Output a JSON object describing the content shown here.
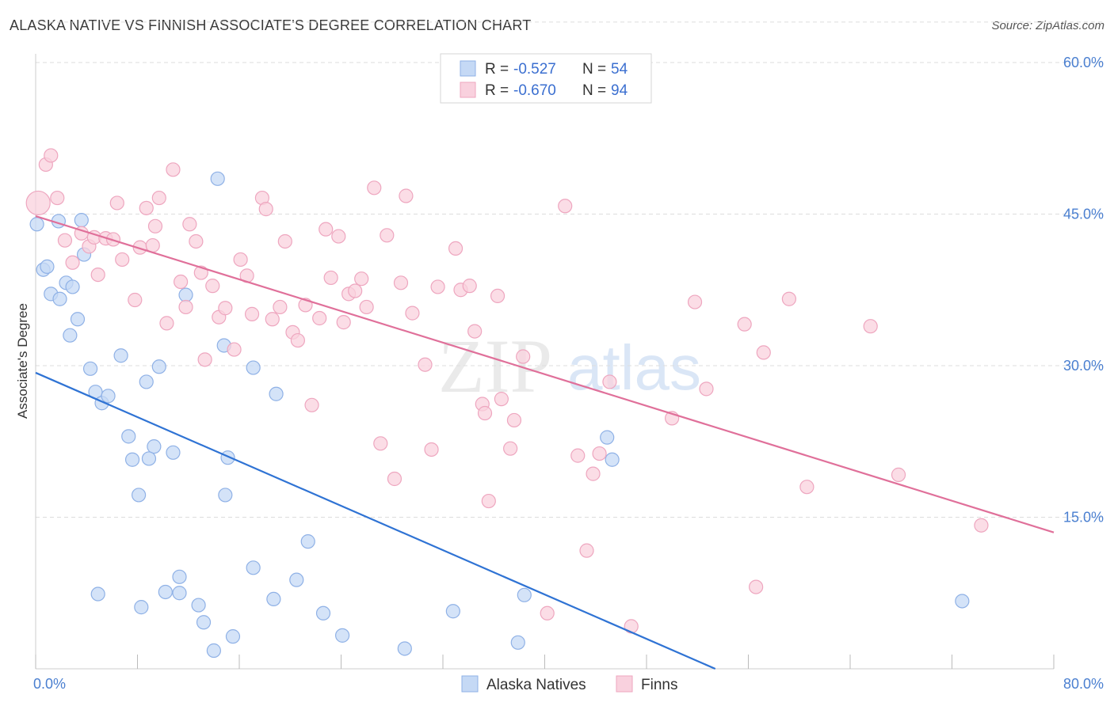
{
  "title": "ALASKA NATIVE VS FINNISH ASSOCIATE'S DEGREE CORRELATION CHART",
  "source": "Source: ZipAtlas.com",
  "watermark": {
    "zip": "ZIP",
    "atlas": "atlas"
  },
  "colors": {
    "blue_fill": "#c5d9f5",
    "blue_stroke": "#8fb1e6",
    "blue_line": "#2f73d4",
    "pink_fill": "#f9d1de",
    "pink_stroke": "#eea6bf",
    "pink_line": "#e0709a",
    "axis_text": "#4a7fd0",
    "grid": "#dddddd"
  },
  "legend_top": {
    "rows": [
      {
        "r_label": "R =",
        "r_value": "-0.527",
        "n_label": "N =",
        "n_value": "54"
      },
      {
        "r_label": "R =",
        "r_value": "-0.670",
        "n_label": "N =",
        "n_value": "94"
      }
    ]
  },
  "legend_bottom": {
    "series": [
      "Alaska Natives",
      "Finns"
    ]
  },
  "chart_data": {
    "type": "scatter",
    "title": "ALASKA NATIVE VS FINNISH ASSOCIATE'S DEGREE CORRELATION CHART",
    "xlabel": "",
    "ylabel": "Associate's Degree",
    "xlim": [
      0,
      80
    ],
    "ylim": [
      0,
      64
    ],
    "x_tick_labels": [
      "0.0%",
      "80.0%"
    ],
    "y_ticks": [
      15,
      30,
      45,
      60
    ],
    "y_tick_labels": [
      "15.0%",
      "30.0%",
      "45.0%",
      "60.0%"
    ],
    "grid": "horizontal dashed",
    "legend_position": "top-center",
    "series": [
      {
        "name": "Alaska Natives",
        "r": -0.527,
        "n": 54,
        "trend": {
          "x": [
            0,
            53.4
          ],
          "y": [
            29.3,
            0
          ]
        },
        "points": [
          [
            0.1,
            44.0
          ],
          [
            0.6,
            39.5
          ],
          [
            0.9,
            39.8
          ],
          [
            1.2,
            37.1
          ],
          [
            1.9,
            36.6
          ],
          [
            1.8,
            44.3
          ],
          [
            2.4,
            38.2
          ],
          [
            2.9,
            37.8
          ],
          [
            2.7,
            33.0
          ],
          [
            3.3,
            34.6
          ],
          [
            3.6,
            44.4
          ],
          [
            3.8,
            41.0
          ],
          [
            4.3,
            29.7
          ],
          [
            4.7,
            27.4
          ],
          [
            5.2,
            26.3
          ],
          [
            5.7,
            27.0
          ],
          [
            6.7,
            31.0
          ],
          [
            7.3,
            23.0
          ],
          [
            7.6,
            20.7
          ],
          [
            8.1,
            17.2
          ],
          [
            8.7,
            28.4
          ],
          [
            9.3,
            22.0
          ],
          [
            8.9,
            20.8
          ],
          [
            9.7,
            29.9
          ],
          [
            10.8,
            21.4
          ],
          [
            11.3,
            9.1
          ],
          [
            11.3,
            7.5
          ],
          [
            11.8,
            37.0
          ],
          [
            14.3,
            48.5
          ],
          [
            14.8,
            32.0
          ],
          [
            14.9,
            17.2
          ],
          [
            15.1,
            20.9
          ],
          [
            17.1,
            29.8
          ],
          [
            17.1,
            10.0
          ],
          [
            18.9,
            27.2
          ],
          [
            18.7,
            6.9
          ],
          [
            20.5,
            8.8
          ],
          [
            21.4,
            12.6
          ],
          [
            22.6,
            5.5
          ],
          [
            24.1,
            3.3
          ],
          [
            29.0,
            2.0
          ],
          [
            32.8,
            5.7
          ],
          [
            37.9,
            2.6
          ],
          [
            38.4,
            7.3
          ],
          [
            44.9,
            22.9
          ],
          [
            45.3,
            20.7
          ],
          [
            72.8,
            6.7
          ],
          [
            4.9,
            7.4
          ],
          [
            8.3,
            6.1
          ],
          [
            10.2,
            7.6
          ],
          [
            12.8,
            6.3
          ],
          [
            13.2,
            4.6
          ],
          [
            14.0,
            1.8
          ],
          [
            15.5,
            3.2
          ]
        ]
      },
      {
        "name": "Finns",
        "r": -0.67,
        "n": 94,
        "trend": {
          "x": [
            0,
            80
          ],
          "y": [
            44.8,
            13.5
          ]
        },
        "points": [
          [
            0.2,
            46.1
          ],
          [
            0.8,
            49.9
          ],
          [
            1.2,
            50.8
          ],
          [
            1.7,
            46.6
          ],
          [
            2.3,
            42.4
          ],
          [
            2.9,
            40.2
          ],
          [
            3.6,
            43.1
          ],
          [
            4.2,
            41.8
          ],
          [
            4.6,
            42.7
          ],
          [
            4.9,
            39.0
          ],
          [
            5.5,
            42.6
          ],
          [
            6.1,
            42.5
          ],
          [
            6.4,
            46.1
          ],
          [
            6.8,
            40.5
          ],
          [
            7.8,
            36.5
          ],
          [
            8.2,
            41.7
          ],
          [
            8.7,
            45.6
          ],
          [
            9.2,
            41.9
          ],
          [
            9.4,
            43.8
          ],
          [
            9.7,
            46.6
          ],
          [
            10.3,
            34.2
          ],
          [
            10.8,
            49.4
          ],
          [
            11.4,
            38.3
          ],
          [
            11.8,
            35.8
          ],
          [
            12.1,
            44.0
          ],
          [
            12.6,
            42.3
          ],
          [
            13.0,
            39.2
          ],
          [
            13.3,
            30.6
          ],
          [
            13.9,
            37.9
          ],
          [
            14.4,
            34.8
          ],
          [
            14.9,
            35.7
          ],
          [
            15.6,
            31.6
          ],
          [
            16.1,
            40.5
          ],
          [
            16.6,
            38.9
          ],
          [
            17.0,
            35.1
          ],
          [
            17.8,
            46.6
          ],
          [
            18.1,
            45.5
          ],
          [
            18.6,
            34.6
          ],
          [
            19.2,
            35.8
          ],
          [
            19.6,
            42.3
          ],
          [
            20.2,
            33.3
          ],
          [
            20.6,
            32.5
          ],
          [
            21.2,
            36.0
          ],
          [
            21.7,
            26.1
          ],
          [
            22.3,
            34.7
          ],
          [
            22.8,
            43.5
          ],
          [
            23.2,
            38.7
          ],
          [
            23.8,
            42.8
          ],
          [
            24.2,
            34.3
          ],
          [
            24.6,
            37.1
          ],
          [
            25.1,
            37.4
          ],
          [
            25.6,
            38.6
          ],
          [
            26.0,
            35.8
          ],
          [
            26.6,
            47.6
          ],
          [
            27.1,
            22.3
          ],
          [
            27.6,
            42.9
          ],
          [
            28.2,
            18.8
          ],
          [
            28.7,
            38.2
          ],
          [
            29.1,
            46.8
          ],
          [
            29.6,
            35.2
          ],
          [
            30.6,
            30.1
          ],
          [
            31.1,
            21.7
          ],
          [
            31.6,
            37.8
          ],
          [
            33.0,
            41.6
          ],
          [
            33.4,
            37.5
          ],
          [
            34.1,
            37.9
          ],
          [
            34.5,
            33.4
          ],
          [
            35.1,
            26.2
          ],
          [
            35.3,
            25.3
          ],
          [
            35.6,
            16.6
          ],
          [
            36.3,
            36.9
          ],
          [
            36.6,
            26.7
          ],
          [
            37.3,
            21.8
          ],
          [
            37.6,
            24.6
          ],
          [
            38.3,
            30.9
          ],
          [
            40.2,
            5.5
          ],
          [
            41.6,
            45.8
          ],
          [
            42.6,
            21.1
          ],
          [
            43.3,
            11.7
          ],
          [
            43.8,
            19.3
          ],
          [
            44.3,
            21.3
          ],
          [
            45.1,
            28.4
          ],
          [
            46.8,
            4.2
          ],
          [
            50.0,
            24.8
          ],
          [
            51.8,
            36.3
          ],
          [
            52.7,
            27.7
          ],
          [
            55.7,
            34.1
          ],
          [
            56.6,
            8.1
          ],
          [
            57.2,
            31.3
          ],
          [
            59.2,
            36.6
          ],
          [
            60.6,
            18.0
          ],
          [
            65.6,
            33.9
          ],
          [
            67.8,
            19.2
          ],
          [
            74.3,
            14.2
          ]
        ]
      }
    ]
  }
}
